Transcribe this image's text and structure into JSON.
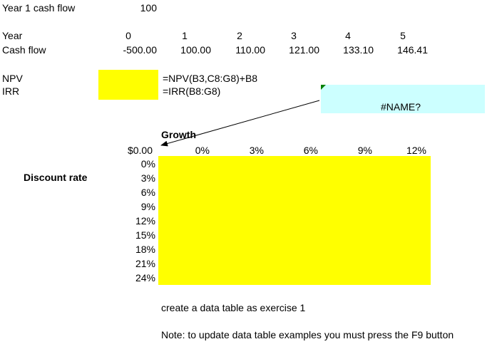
{
  "rows": {
    "year1_label": "Year 1 cash flow",
    "year1_value": "100",
    "year_label": "Year",
    "cashflow_label": "Cash flow",
    "years": [
      "0",
      "1",
      "2",
      "3",
      "4",
      "5"
    ],
    "cash_flows": [
      "-500.00",
      "100.00",
      "110.00",
      "121.00",
      "133.10",
      "146.41"
    ]
  },
  "metrics": {
    "npv_label": "NPV",
    "irr_label": "IRR",
    "npv_formula": "=NPV(B3,C8:G8)+B8",
    "irr_formula": "=IRR(B8:G8)"
  },
  "error_box": {
    "text": "#NAME?"
  },
  "data_table": {
    "growth_label": "Growth",
    "corner_value": "$0.00",
    "growth_rates": [
      "0%",
      "3%",
      "6%",
      "9%",
      "12%"
    ],
    "discount_label": "Discount rate",
    "discount_rates": [
      "0%",
      "3%",
      "6%",
      "9%",
      "12%",
      "15%",
      "18%",
      "21%",
      "24%"
    ]
  },
  "notes": {
    "exercise": "create a data table as exercise 1",
    "f9_note": "Note: to update data table examples you must press the F9 button"
  },
  "colors": {
    "highlight": "#ffff00",
    "error_box": "#ccffff",
    "comment_marker": "#008000"
  }
}
